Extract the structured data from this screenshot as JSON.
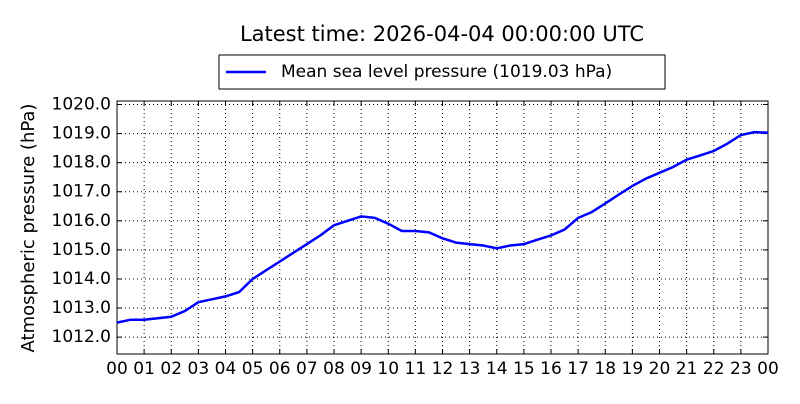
{
  "chart_data": {
    "type": "line",
    "title": "Latest time: 2026-04-04 00:00:00 UTC",
    "y_label": "Atmospheric pressure (hPa)",
    "x": [
      0,
      0.5,
      1,
      1.5,
      2,
      2.5,
      3,
      3.5,
      4,
      4.5,
      5,
      5.5,
      6,
      6.5,
      7,
      7.5,
      8,
      8.5,
      9,
      9.5,
      10,
      10.5,
      11,
      11.5,
      12,
      12.5,
      13,
      13.5,
      14,
      14.5,
      15,
      15.5,
      16,
      16.5,
      17,
      17.5,
      18,
      18.5,
      19,
      19.5,
      20,
      20.5,
      21,
      21.5,
      22,
      22.5,
      23,
      23.5,
      24
    ],
    "series": [
      {
        "name": "Mean sea level pressure (1019.03 hPa)",
        "color": "#0000ff",
        "values": [
          1012.5,
          1012.6,
          1012.6,
          1012.65,
          1012.7,
          1012.9,
          1013.2,
          1013.3,
          1013.4,
          1013.55,
          1014.0,
          1014.3,
          1014.6,
          1014.9,
          1015.2,
          1015.5,
          1015.85,
          1016.0,
          1016.15,
          1016.1,
          1015.9,
          1015.65,
          1015.65,
          1015.6,
          1015.4,
          1015.25,
          1015.2,
          1015.15,
          1015.05,
          1015.15,
          1015.2,
          1015.35,
          1015.5,
          1015.7,
          1016.1,
          1016.3,
          1016.6,
          1016.9,
          1017.2,
          1017.45,
          1017.65,
          1017.85,
          1018.1,
          1018.25,
          1018.4,
          1018.65,
          1018.95,
          1019.05,
          1019.03
        ]
      }
    ],
    "xlim": [
      0,
      24
    ],
    "xticks": [
      {
        "value": 0,
        "label": "00"
      },
      {
        "value": 1,
        "label": "01"
      },
      {
        "value": 2,
        "label": "02"
      },
      {
        "value": 3,
        "label": "03"
      },
      {
        "value": 4,
        "label": "04"
      },
      {
        "value": 5,
        "label": "05"
      },
      {
        "value": 6,
        "label": "06"
      },
      {
        "value": 7,
        "label": "07"
      },
      {
        "value": 8,
        "label": "08"
      },
      {
        "value": 9,
        "label": "09"
      },
      {
        "value": 10,
        "label": "10"
      },
      {
        "value": 11,
        "label": "11"
      },
      {
        "value": 12,
        "label": "12"
      },
      {
        "value": 13,
        "label": "13"
      },
      {
        "value": 14,
        "label": "14"
      },
      {
        "value": 15,
        "label": "15"
      },
      {
        "value": 16,
        "label": "16"
      },
      {
        "value": 17,
        "label": "17"
      },
      {
        "value": 18,
        "label": "18"
      },
      {
        "value": 19,
        "label": "19"
      },
      {
        "value": 20,
        "label": "20"
      },
      {
        "value": 21,
        "label": "21"
      },
      {
        "value": 22,
        "label": "22"
      },
      {
        "value": 23,
        "label": "23"
      },
      {
        "value": 24,
        "label": "00"
      }
    ],
    "ylim": [
      1011.42,
      1020.12
    ],
    "yticks": [
      {
        "value": 1012,
        "label": "1012.0"
      },
      {
        "value": 1013,
        "label": "1013.0"
      },
      {
        "value": 1014,
        "label": "1014.0"
      },
      {
        "value": 1015,
        "label": "1015.0"
      },
      {
        "value": 1016,
        "label": "1016.0"
      },
      {
        "value": 1017,
        "label": "1017.0"
      },
      {
        "value": 1018,
        "label": "1018.0"
      },
      {
        "value": 1019,
        "label": "1019.0"
      },
      {
        "value": 1020,
        "label": "1020.0"
      }
    ],
    "grid": true
  }
}
